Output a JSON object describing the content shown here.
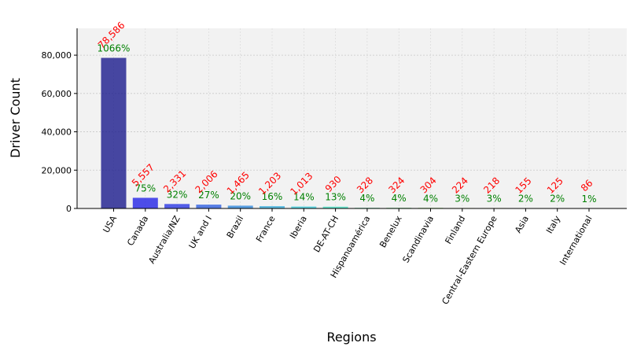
{
  "chart_data": {
    "type": "bar",
    "xlabel": "Regions",
    "ylabel": "Driver Count",
    "ylim": [
      0,
      94000
    ],
    "yticks": [
      0,
      20000,
      40000,
      60000,
      80000
    ],
    "ytick_labels": [
      "0",
      "20,000",
      "40,000",
      "60,000",
      "80,000"
    ],
    "grid": true,
    "categories": [
      "USA",
      "Canada",
      "Australia/NZ",
      "UK and I",
      "Brazil",
      "France",
      "Iberia",
      "DE-AT-CH",
      "Hispanoamérica",
      "Benelux",
      "Scandinavia",
      "Finland",
      "Central-Eastern Europe",
      "Asia",
      "Italy",
      "International"
    ],
    "values": [
      78586,
      5557,
      2331,
      2006,
      1465,
      1203,
      1013,
      930,
      328,
      324,
      304,
      224,
      218,
      155,
      125,
      86
    ],
    "count_labels": [
      "78,586",
      "5,557",
      "2,331",
      "2,006",
      "1,465",
      "1,203",
      "1,013",
      "930",
      "328",
      "324",
      "304",
      "224",
      "218",
      "155",
      "125",
      "86"
    ],
    "pct_labels": [
      "1066%",
      "75%",
      "32%",
      "27%",
      "20%",
      "16%",
      "14%",
      "13%",
      "4%",
      "4%",
      "4%",
      "3%",
      "3%",
      "2%",
      "2%",
      "1%"
    ],
    "colors": [
      "#1a1a8c",
      "#2323e6",
      "#2a37e4",
      "#2e5fe0",
      "#3289dd",
      "#37acdc",
      "#3ccddb",
      "#42e0c2",
      "#4ae09a",
      "#52de6e",
      "#7bdc4e",
      "#abd94a",
      "#d2c244",
      "#d4913d",
      "#cf5a34",
      "#c2262a"
    ],
    "count_label_color": "#ff0000",
    "pct_label_color": "#008000",
    "plot_background": "#f2f2f2"
  }
}
